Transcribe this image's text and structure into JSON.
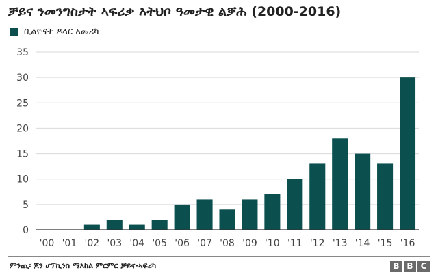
{
  "header": {
    "title": "ቻይና ንመንግስታት ኣፍሪቃ እትህቦ ዓመታዊ ልቓሕ (2000-2016)"
  },
  "colors": {
    "bar": "#0b4f4f",
    "grid": "#d9d9d9",
    "axis": "#333333",
    "tick_text": "#444444"
  },
  "chart_data": {
    "type": "bar",
    "categories": [
      "'00",
      "'01",
      "'02",
      "'03",
      "'04",
      "'05",
      "'06",
      "'07",
      "'08",
      "'09",
      "'10",
      "'11",
      "'12",
      "'13",
      "'14",
      "'15",
      "'16"
    ],
    "series": [
      {
        "name": "ቢልዮናት ዶላር ኣመሪካ",
        "values": [
          0,
          0,
          1,
          2,
          1,
          2,
          5,
          6,
          4,
          6,
          7,
          10,
          13,
          18,
          15,
          13,
          30
        ]
      }
    ],
    "ylim": [
      0,
      35
    ],
    "yticks": [
      0,
      5,
      10,
      15,
      20,
      25,
      30,
      35
    ],
    "grid": true,
    "legend_position": "top-left"
  },
  "footer": {
    "source": "ምንጪ፡ ጆን ሆፕኪንስ ማእከል ምርምር ቻይና-ኣፍሪካ",
    "brand": [
      "B",
      "B",
      "C"
    ]
  }
}
